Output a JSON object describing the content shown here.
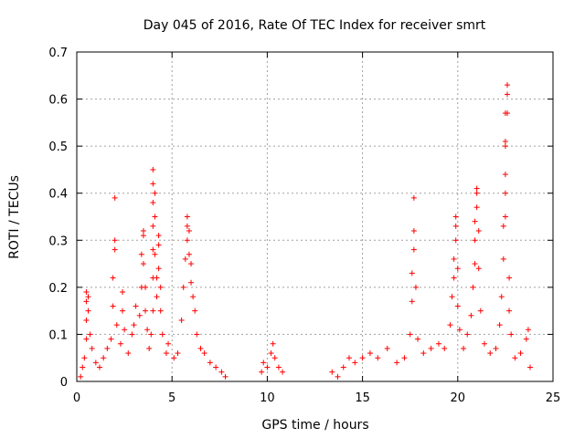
{
  "chart_data": {
    "type": "scatter",
    "title": "Day 045 of 2016, Rate Of TEC Index for receiver smrt",
    "xlabel": "GPS time / hours",
    "ylabel": "ROTI / TECUs",
    "xlim": [
      0,
      25
    ],
    "ylim": [
      0,
      0.7
    ],
    "xticks": [
      "0",
      "5",
      "10",
      "15",
      "20",
      "25"
    ],
    "yticks": [
      "0",
      "0.1",
      "0.2",
      "0.3",
      "0.4",
      "0.5",
      "0.6",
      "0.7"
    ],
    "grid": true,
    "marker": "+",
    "color": "#ff0000",
    "series": [
      {
        "name": "ROTI",
        "points": [
          [
            0.2,
            0.01
          ],
          [
            0.3,
            0.03
          ],
          [
            0.4,
            0.05
          ],
          [
            0.5,
            0.09
          ],
          [
            0.5,
            0.13
          ],
          [
            0.5,
            0.17
          ],
          [
            0.5,
            0.19
          ],
          [
            0.6,
            0.18
          ],
          [
            0.6,
            0.15
          ],
          [
            0.7,
            0.1
          ],
          [
            0.8,
            0.07
          ],
          [
            1.0,
            0.04
          ],
          [
            1.2,
            0.03
          ],
          [
            1.4,
            0.05
          ],
          [
            1.6,
            0.07
          ],
          [
            1.8,
            0.09
          ],
          [
            1.9,
            0.16
          ],
          [
            1.9,
            0.22
          ],
          [
            2.0,
            0.28
          ],
          [
            2.0,
            0.3
          ],
          [
            2.0,
            0.39
          ],
          [
            2.1,
            0.12
          ],
          [
            2.3,
            0.08
          ],
          [
            2.4,
            0.15
          ],
          [
            2.4,
            0.19
          ],
          [
            2.5,
            0.11
          ],
          [
            2.7,
            0.06
          ],
          [
            2.9,
            0.1
          ],
          [
            3.0,
            0.12
          ],
          [
            3.1,
            0.16
          ],
          [
            3.3,
            0.14
          ],
          [
            3.4,
            0.2
          ],
          [
            3.4,
            0.27
          ],
          [
            3.5,
            0.31
          ],
          [
            3.5,
            0.32
          ],
          [
            3.5,
            0.25
          ],
          [
            3.6,
            0.2
          ],
          [
            3.6,
            0.15
          ],
          [
            3.7,
            0.11
          ],
          [
            3.8,
            0.07
          ],
          [
            3.9,
            0.1
          ],
          [
            4.0,
            0.15
          ],
          [
            4.0,
            0.22
          ],
          [
            4.0,
            0.28
          ],
          [
            4.0,
            0.33
          ],
          [
            4.0,
            0.38
          ],
          [
            4.0,
            0.42
          ],
          [
            4.0,
            0.45
          ],
          [
            4.1,
            0.4
          ],
          [
            4.1,
            0.35
          ],
          [
            4.1,
            0.27
          ],
          [
            4.2,
            0.22
          ],
          [
            4.2,
            0.18
          ],
          [
            4.3,
            0.24
          ],
          [
            4.3,
            0.29
          ],
          [
            4.3,
            0.31
          ],
          [
            4.4,
            0.2
          ],
          [
            4.4,
            0.15
          ],
          [
            4.5,
            0.1
          ],
          [
            4.7,
            0.06
          ],
          [
            4.8,
            0.08
          ],
          [
            5.1,
            0.05
          ],
          [
            5.3,
            0.06
          ],
          [
            5.5,
            0.13
          ],
          [
            5.6,
            0.2
          ],
          [
            5.7,
            0.26
          ],
          [
            5.8,
            0.3
          ],
          [
            5.8,
            0.33
          ],
          [
            5.8,
            0.35
          ],
          [
            5.9,
            0.32
          ],
          [
            5.9,
            0.27
          ],
          [
            6.0,
            0.25
          ],
          [
            6.0,
            0.21
          ],
          [
            6.1,
            0.18
          ],
          [
            6.2,
            0.15
          ],
          [
            6.3,
            0.1
          ],
          [
            6.5,
            0.07
          ],
          [
            6.7,
            0.06
          ],
          [
            7.0,
            0.04
          ],
          [
            7.3,
            0.03
          ],
          [
            7.6,
            0.02
          ],
          [
            7.8,
            0.01
          ],
          [
            9.7,
            0.02
          ],
          [
            9.8,
            0.04
          ],
          [
            10.0,
            0.03
          ],
          [
            10.2,
            0.06
          ],
          [
            10.3,
            0.08
          ],
          [
            10.4,
            0.05
          ],
          [
            10.6,
            0.03
          ],
          [
            10.8,
            0.02
          ],
          [
            13.4,
            0.02
          ],
          [
            13.7,
            0.01
          ],
          [
            14.0,
            0.03
          ],
          [
            14.3,
            0.05
          ],
          [
            14.6,
            0.04
          ],
          [
            15.0,
            0.05
          ],
          [
            15.4,
            0.06
          ],
          [
            15.8,
            0.05
          ],
          [
            16.3,
            0.07
          ],
          [
            16.8,
            0.04
          ],
          [
            17.2,
            0.05
          ],
          [
            17.5,
            0.1
          ],
          [
            17.6,
            0.17
          ],
          [
            17.6,
            0.23
          ],
          [
            17.7,
            0.28
          ],
          [
            17.7,
            0.32
          ],
          [
            17.7,
            0.39
          ],
          [
            17.8,
            0.2
          ],
          [
            17.9,
            0.09
          ],
          [
            18.2,
            0.06
          ],
          [
            18.6,
            0.07
          ],
          [
            19.0,
            0.08
          ],
          [
            19.3,
            0.07
          ],
          [
            19.6,
            0.12
          ],
          [
            19.7,
            0.18
          ],
          [
            19.8,
            0.22
          ],
          [
            19.8,
            0.26
          ],
          [
            19.9,
            0.3
          ],
          [
            19.9,
            0.33
          ],
          [
            19.9,
            0.35
          ],
          [
            20.0,
            0.24
          ],
          [
            20.0,
            0.16
          ],
          [
            20.1,
            0.11
          ],
          [
            20.3,
            0.07
          ],
          [
            20.5,
            0.1
          ],
          [
            20.7,
            0.14
          ],
          [
            20.8,
            0.2
          ],
          [
            20.9,
            0.25
          ],
          [
            20.9,
            0.3
          ],
          [
            20.9,
            0.34
          ],
          [
            21.0,
            0.37
          ],
          [
            21.0,
            0.4
          ],
          [
            21.0,
            0.41
          ],
          [
            21.1,
            0.32
          ],
          [
            21.1,
            0.24
          ],
          [
            21.2,
            0.15
          ],
          [
            21.4,
            0.08
          ],
          [
            21.7,
            0.06
          ],
          [
            22.0,
            0.07
          ],
          [
            22.2,
            0.12
          ],
          [
            22.3,
            0.18
          ],
          [
            22.4,
            0.26
          ],
          [
            22.4,
            0.33
          ],
          [
            22.5,
            0.35
          ],
          [
            22.5,
            0.4
          ],
          [
            22.5,
            0.44
          ],
          [
            22.5,
            0.5
          ],
          [
            22.5,
            0.51
          ],
          [
            22.5,
            0.57
          ],
          [
            22.6,
            0.61
          ],
          [
            22.6,
            0.63
          ],
          [
            22.6,
            0.57
          ],
          [
            22.7,
            0.22
          ],
          [
            22.7,
            0.15
          ],
          [
            22.8,
            0.1
          ],
          [
            23.0,
            0.05
          ],
          [
            23.3,
            0.06
          ],
          [
            23.6,
            0.09
          ],
          [
            23.7,
            0.11
          ],
          [
            23.8,
            0.03
          ]
        ]
      }
    ]
  }
}
